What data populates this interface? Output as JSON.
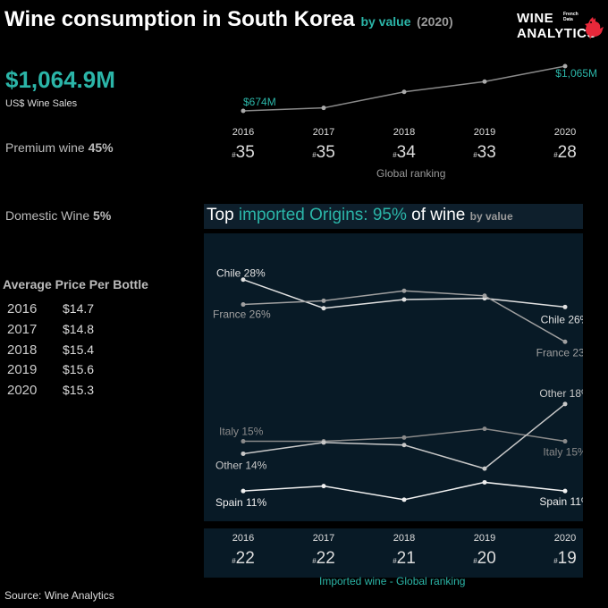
{
  "title": {
    "main": "Wine consumption in South Korea",
    "by": "by value",
    "year": "(2020)"
  },
  "logo": {
    "line1": "WINE",
    "line2": "ANALYTICS",
    "tag1": "French",
    "tag2": "Data"
  },
  "sales": {
    "value": "$1,064.9M",
    "label": "US$ Wine Sales"
  },
  "premium": {
    "label": "Premium wine",
    "value": "45%"
  },
  "domestic": {
    "label": "Domestic Wine",
    "value": "5%"
  },
  "avg_price": {
    "title": "Average Price Per Bottle",
    "rows": [
      {
        "year": "2016",
        "value": "$14.7"
      },
      {
        "year": "2017",
        "value": "$14.8"
      },
      {
        "year": "2018",
        "value": "$15.4"
      },
      {
        "year": "2019",
        "value": "$15.6"
      },
      {
        "year": "2020",
        "value": "$15.3"
      }
    ]
  },
  "global_ranking": {
    "label": "Global ranking",
    "items": [
      {
        "year": "2016",
        "rank": "35"
      },
      {
        "year": "2017",
        "rank": "35"
      },
      {
        "year": "2018",
        "rank": "34"
      },
      {
        "year": "2019",
        "rank": "33"
      },
      {
        "year": "2020",
        "rank": "28"
      }
    ]
  },
  "imported_ranking": {
    "label": "Imported wine - Global ranking",
    "items": [
      {
        "year": "2016",
        "rank": "22"
      },
      {
        "year": "2017",
        "rank": "22"
      },
      {
        "year": "2018",
        "rank": "21"
      },
      {
        "year": "2019",
        "rank": "20"
      },
      {
        "year": "2020",
        "rank": "19"
      }
    ]
  },
  "panel_title": {
    "pre": "Top ",
    "accent": "imported Origins: 95%",
    "post": " of wine",
    "by": "by value"
  },
  "source": "Source: Wine Analytics",
  "colors": {
    "accent": "#2bb5a8",
    "panel_bg": "#081a26",
    "line_light": "#e0e0e0",
    "line_mid": "#b0b0b0",
    "line_dim": "#8a8a8a"
  },
  "chart_data": [
    {
      "type": "line",
      "title": "",
      "x": [
        "2016",
        "2017",
        "2018",
        "2019",
        "2020"
      ],
      "series": [
        {
          "name": "",
          "values": [
            674,
            700,
            840,
            930,
            1065
          ]
        }
      ],
      "labels": {
        "first": "$674M",
        "last": "$1,065M"
      },
      "ylim": [
        600,
        1100
      ],
      "grid": false
    },
    {
      "type": "line",
      "title": "Top imported Origins: 95% of wine by value",
      "x": [
        "2016",
        "2017",
        "2018",
        "2019",
        "2020"
      ],
      "ylim": [
        9,
        31
      ],
      "grid": false,
      "series": [
        {
          "name": "Chile",
          "start_label": "Chile 28%",
          "end_label": "Chile 26%",
          "values": [
            28,
            25.7,
            26.4,
            26.5,
            25.8
          ],
          "color": "#e0e0e0"
        },
        {
          "name": "France",
          "start_label": "France 26%",
          "end_label": "France 23%",
          "values": [
            26,
            26.3,
            27.1,
            26.7,
            23
          ],
          "color": "#a0a0a0"
        },
        {
          "name": "Italy",
          "start_label": "Italy 15%",
          "end_label": "Italy 15%",
          "values": [
            15,
            15,
            15.3,
            16,
            15
          ],
          "color": "#8a8a8a"
        },
        {
          "name": "Other",
          "start_label": "Other 14%",
          "end_label": "Other 18%",
          "values": [
            14,
            14.9,
            14.7,
            12.8,
            18
          ],
          "color": "#c8c8c8"
        },
        {
          "name": "Spain",
          "start_label": "Spain 11%",
          "end_label": "Spain 11%",
          "values": [
            11,
            11.4,
            10.3,
            11.7,
            11
          ],
          "color": "#f0f0f0"
        }
      ]
    }
  ]
}
